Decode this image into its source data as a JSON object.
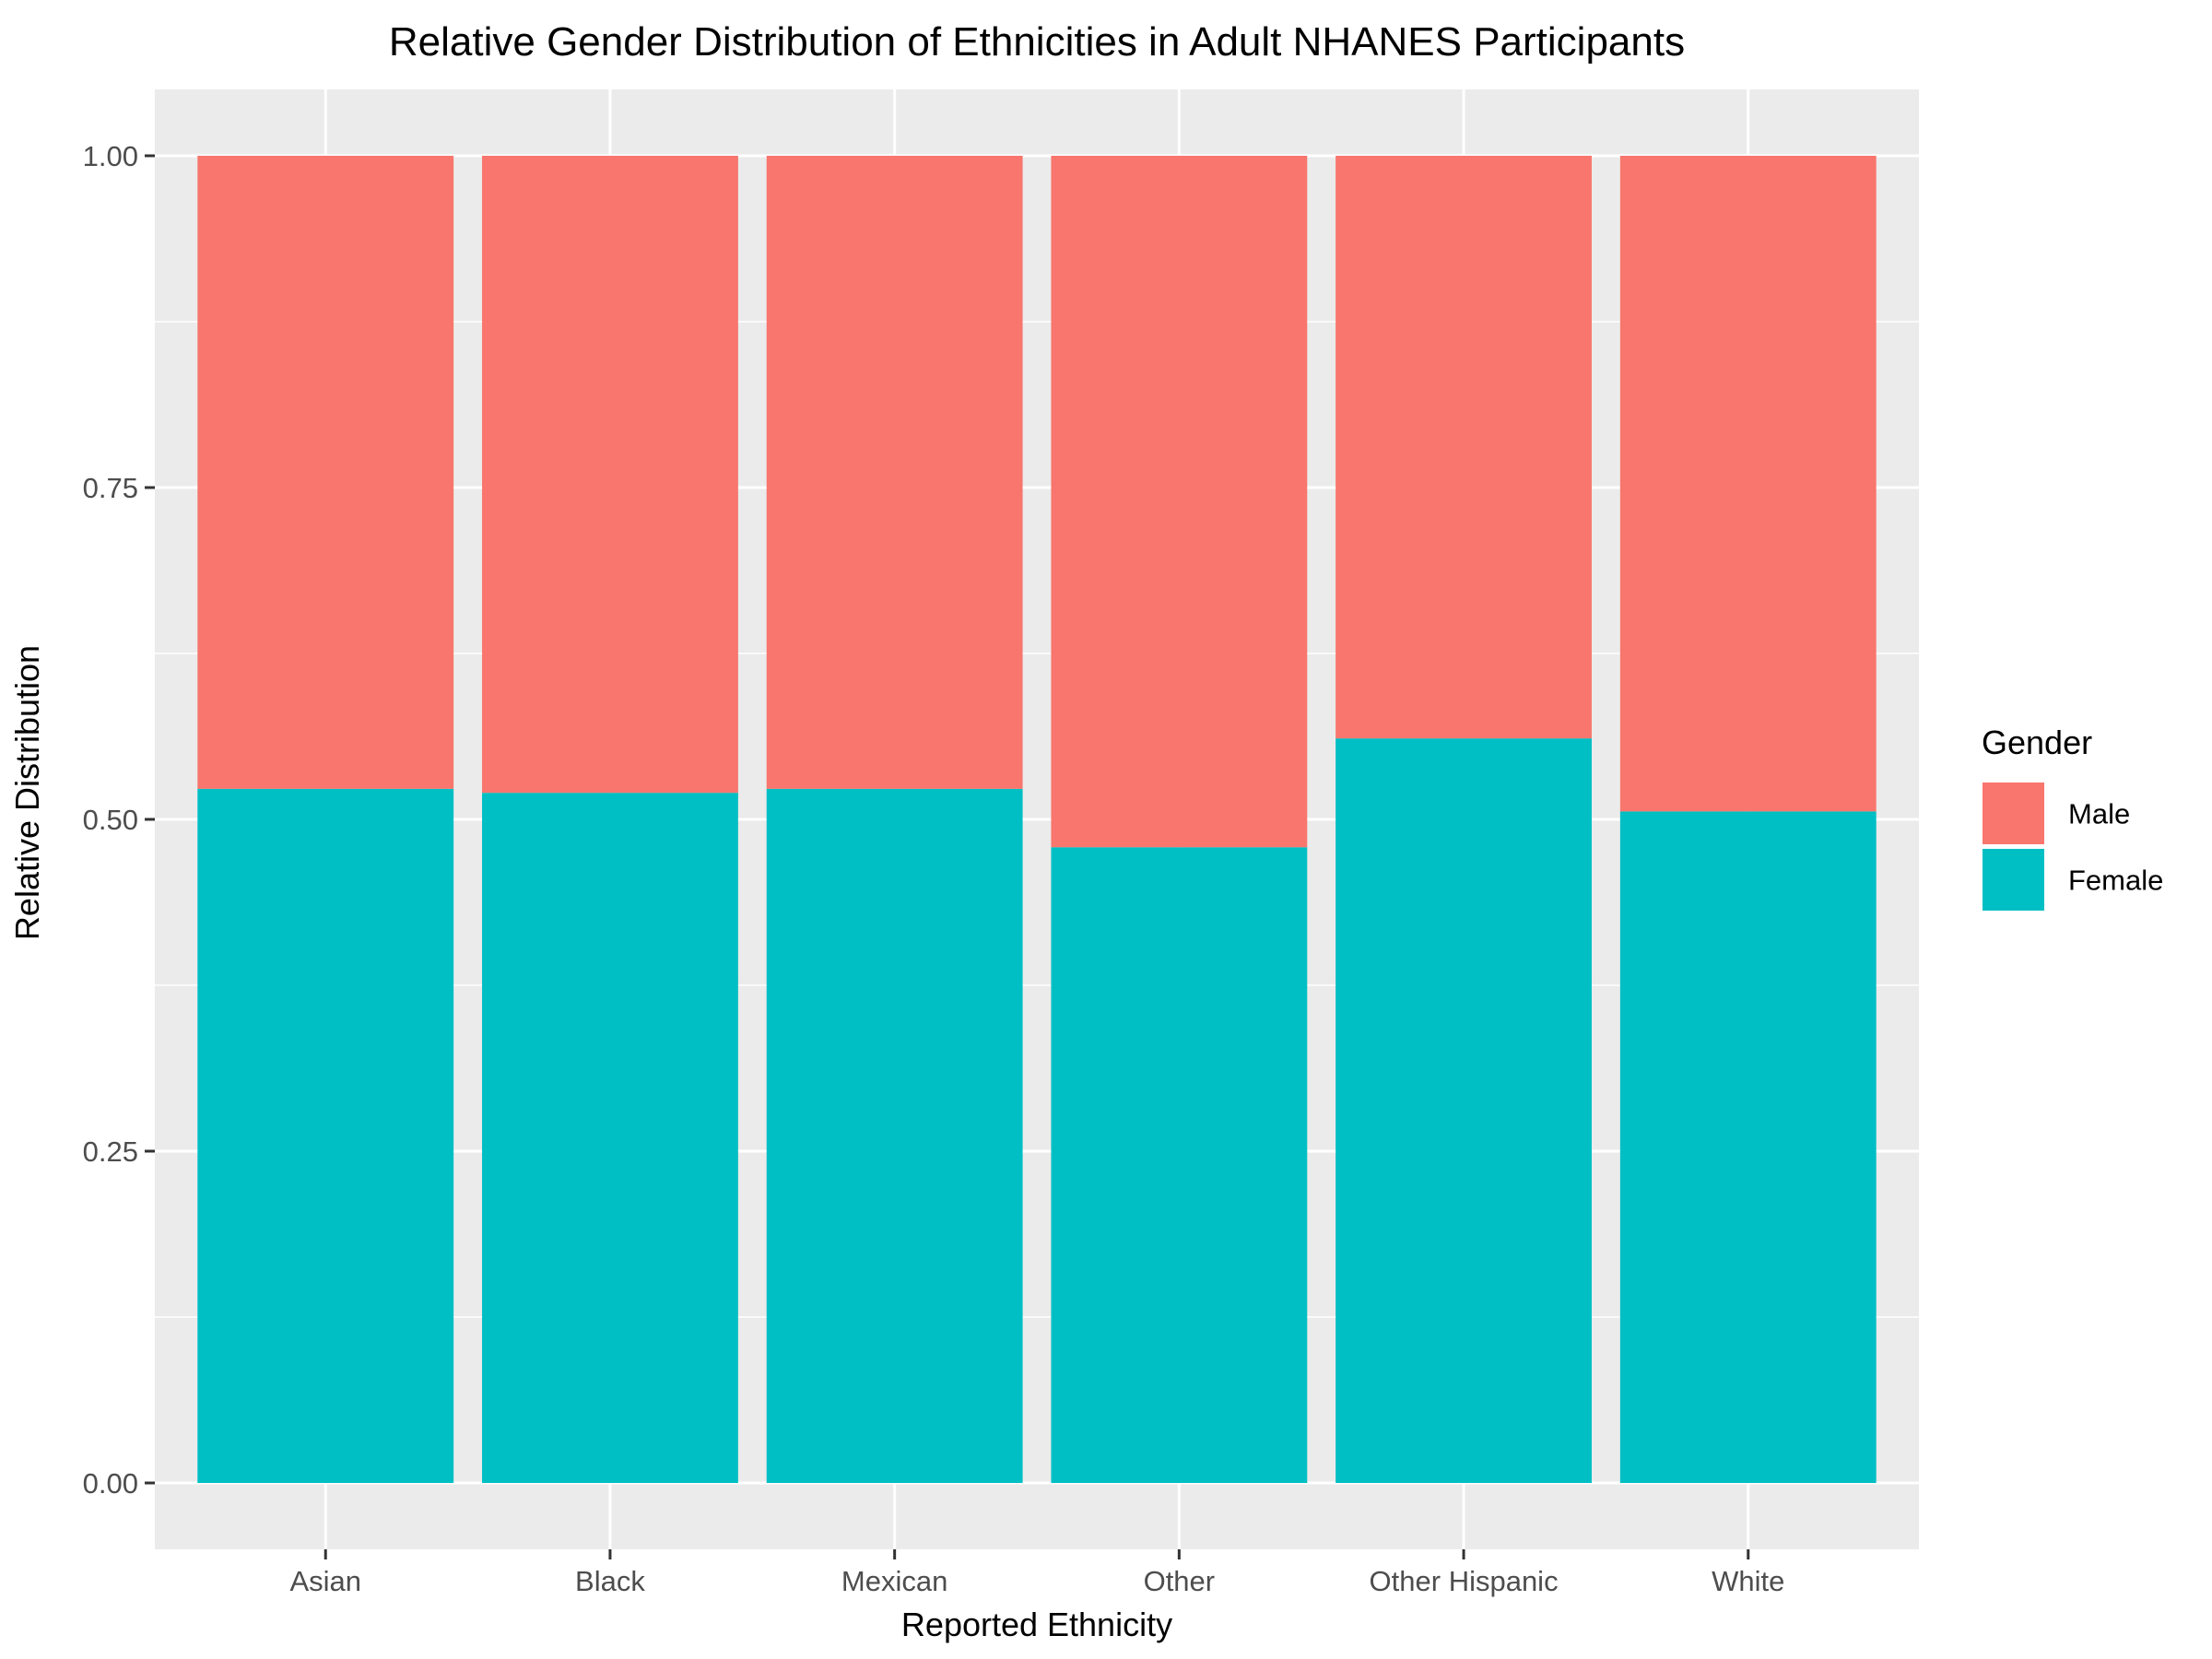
{
  "chart_data": {
    "type": "bar",
    "stacked": true,
    "title": "Relative Gender Distribution of Ethnicities in Adult NHANES Participants",
    "xlabel": "Reported Ethnicity",
    "ylabel": "Relative Distribution",
    "ylim": [
      0,
      1
    ],
    "yticks": [
      "0.00",
      "0.25",
      "0.50",
      "0.75",
      "1.00"
    ],
    "categories": [
      "Asian",
      "Black",
      "Mexican",
      "Other",
      "Other Hispanic",
      "White"
    ],
    "series": [
      {
        "name": "Female",
        "color": "#00BFC4",
        "values": [
          0.523,
          0.52,
          0.523,
          0.479,
          0.561,
          0.506
        ]
      },
      {
        "name": "Male",
        "color": "#F8766D",
        "values": [
          0.477,
          0.48,
          0.477,
          0.521,
          0.439,
          0.494
        ]
      }
    ],
    "legend": {
      "title": "Gender",
      "placement": "right",
      "order": [
        "Male",
        "Female"
      ]
    },
    "grid": true,
    "panel_background": "#EBEBEB",
    "grid_color": "#FFFFFF"
  }
}
